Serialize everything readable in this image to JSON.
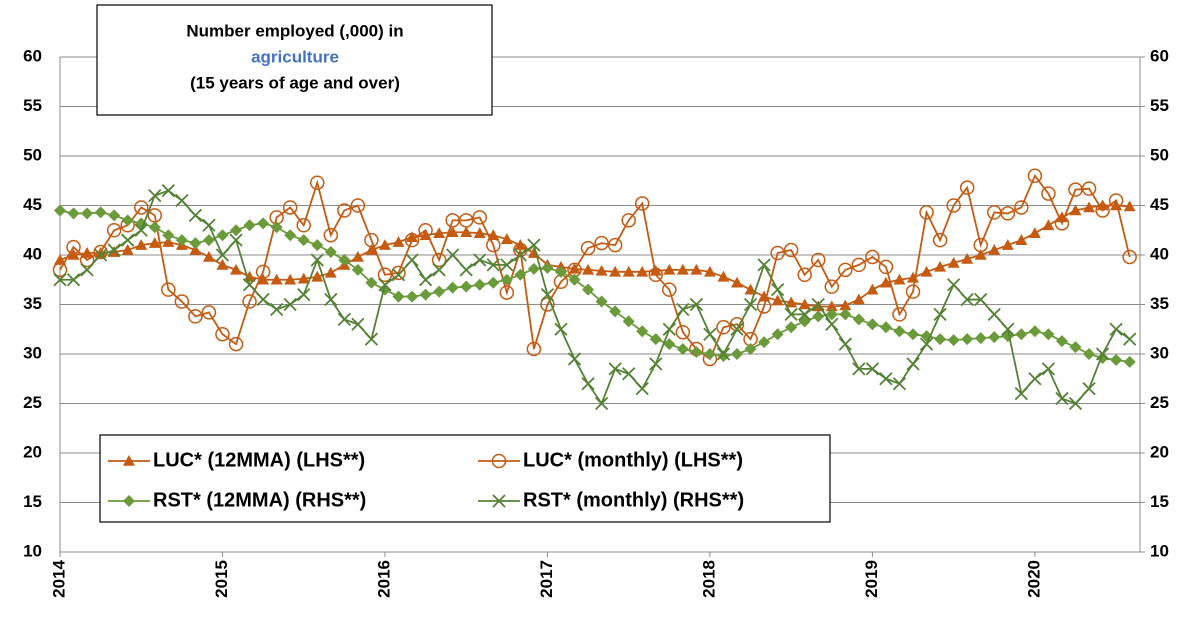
{
  "chart_data": {
    "type": "line",
    "title_lines": [
      "Number employed (,000) in",
      "agriculture",
      "(15 years of age and over)"
    ],
    "categories": [
      "2014",
      null,
      null,
      null,
      null,
      null,
      null,
      null,
      null,
      null,
      null,
      null,
      "2015",
      null,
      null,
      null,
      null,
      null,
      null,
      null,
      null,
      null,
      null,
      null,
      "2016",
      null,
      null,
      null,
      null,
      null,
      null,
      null,
      null,
      null,
      null,
      null,
      "2017",
      null,
      null,
      null,
      null,
      null,
      null,
      null,
      null,
      null,
      null,
      null,
      "2018",
      null,
      null,
      null,
      null,
      null,
      null,
      null,
      null,
      null,
      null,
      null,
      "2019",
      null,
      null,
      null,
      null,
      null,
      null,
      null,
      null,
      null,
      null,
      null,
      "2020",
      null,
      null,
      null,
      null,
      null,
      null,
      null
    ],
    "ylim": [
      10,
      60
    ],
    "yticks": [
      10,
      15,
      20,
      25,
      30,
      35,
      40,
      45,
      50,
      55,
      60
    ],
    "y2lim": [
      10,
      60
    ],
    "y2ticks": [
      10,
      15,
      20,
      25,
      30,
      35,
      40,
      45,
      50,
      55,
      60
    ],
    "grid": true,
    "legend": "lower left",
    "series": [
      {
        "name": "LUC* (12MMA) (LHS**)",
        "color": "#c55a11",
        "marker": "triangle",
        "values": [
          39.5,
          40,
          40.2,
          40.2,
          40.3,
          40.5,
          41,
          41.2,
          41.3,
          41,
          40.5,
          39.8,
          39,
          38.5,
          37.8,
          37.5,
          37.5,
          37.5,
          37.6,
          37.8,
          38.2,
          39,
          39.8,
          40.5,
          41,
          41.3,
          41.8,
          42,
          42.2,
          42.3,
          42.3,
          42.2,
          42,
          41.6,
          41,
          40.2,
          39,
          38.8,
          38.6,
          38.5,
          38.4,
          38.3,
          38.3,
          38.3,
          38.4,
          38.5,
          38.5,
          38.5,
          38.3,
          37.8,
          37.2,
          36.5,
          35.8,
          35.4,
          35.2,
          35,
          34.8,
          34.8,
          34.9,
          35.5,
          36.5,
          37.2,
          37.5,
          37.7,
          38.3,
          38.8,
          39.2,
          39.6,
          40,
          40.5,
          41,
          41.5,
          42.2,
          43,
          43.8,
          44.5,
          44.8,
          45,
          45,
          44.9
        ]
      },
      {
        "name": "LUC* (monthly) (LHS**)",
        "color": "#c55a11",
        "marker": "circle",
        "values": [
          38.5,
          40.8,
          39.5,
          40.3,
          42.5,
          43,
          44.8,
          44,
          36.5,
          35.3,
          33.8,
          34.2,
          32,
          31,
          35.3,
          38.3,
          43.8,
          44.8,
          43,
          47.3,
          42,
          44.5,
          45,
          41.5,
          38,
          38.2,
          41.5,
          42.5,
          39.5,
          43.5,
          43.5,
          43.8,
          41,
          36.2,
          40.5,
          30.5,
          35,
          37.3,
          38.5,
          40.7,
          41.2,
          41,
          43.5,
          45.2,
          38,
          36.5,
          32.2,
          30.5,
          29.5,
          32.7,
          33,
          31.5,
          34.8,
          40.2,
          40.5,
          38,
          39.5,
          36.8,
          38.5,
          39,
          39.8,
          38.8,
          34,
          36.3,
          44.3,
          41.5,
          45,
          46.8,
          41,
          44.3,
          44.2,
          44.8,
          48,
          46.2,
          43.2,
          46.6,
          46.7,
          44.5,
          45.5,
          39.8
        ]
      },
      {
        "name": "RST* (12MMA) (RHS**)",
        "color": "#6a9a3a",
        "marker": "diamond",
        "axis": "y2",
        "values": [
          44.5,
          44.2,
          44.2,
          44.3,
          44,
          43.5,
          43.2,
          42.8,
          42,
          41.5,
          41.2,
          41.5,
          42,
          42.5,
          43,
          43.2,
          42.8,
          42,
          41.5,
          41,
          40.3,
          39.5,
          38.5,
          37.2,
          36.5,
          35.8,
          35.8,
          36,
          36.3,
          36.7,
          36.8,
          37,
          37.2,
          37.5,
          38,
          38.6,
          38.7,
          38.3,
          37.5,
          36.5,
          35.3,
          34.3,
          33.3,
          32.3,
          31.5,
          31,
          30.5,
          30.2,
          30,
          29.8,
          30,
          30.5,
          31.2,
          32,
          32.7,
          33.3,
          33.8,
          34,
          34,
          33.5,
          33,
          32.7,
          32.3,
          32,
          31.8,
          31.5,
          31.4,
          31.5,
          31.6,
          31.7,
          31.8,
          32,
          32.3,
          32,
          31.3,
          30.7,
          30,
          29.6,
          29.4,
          29.2
        ]
      },
      {
        "name": "RST* (monthly) (RHS**)",
        "color": "#548235",
        "marker": "x",
        "axis": "y2",
        "values": [
          37.5,
          37.5,
          38.5,
          40,
          40.5,
          41.5,
          42.5,
          46,
          46.5,
          45.5,
          44,
          43,
          40,
          41.5,
          37,
          35.5,
          34.5,
          35,
          36,
          39.5,
          35.5,
          33.5,
          33,
          31.5,
          37,
          38,
          39.5,
          37.5,
          38.5,
          40,
          38.5,
          39.5,
          39,
          39,
          40,
          41,
          36,
          32.5,
          29.5,
          27,
          25,
          28.5,
          28,
          26.5,
          29,
          32.5,
          34.5,
          35,
          32,
          30,
          32.5,
          35,
          39,
          36.5,
          34,
          34,
          35,
          33,
          31,
          28.5,
          28.5,
          27.5,
          27,
          29,
          31,
          34,
          37,
          35.5,
          35.5,
          34,
          32.5,
          26,
          27.5,
          28.5,
          25.5,
          25,
          26.5,
          30,
          32.5,
          31.5
        ]
      }
    ]
  }
}
